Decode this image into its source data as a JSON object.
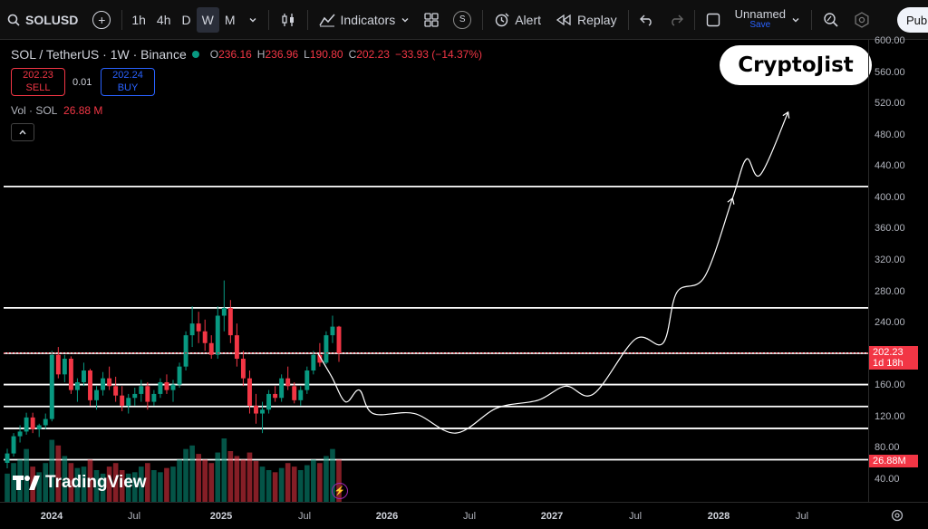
{
  "toolbar": {
    "symbol": "SOLUSD",
    "timeframes": [
      "1h",
      "4h",
      "D",
      "W",
      "M"
    ],
    "active_timeframe": "W",
    "indicators_label": "Indicators",
    "alert_label": "Alert",
    "replay_label": "Replay",
    "layout_name": "Unnamed",
    "save_label": "Save",
    "publish_label": "Pub",
    "s_badge": "S",
    "add_symbol": "+"
  },
  "legend": {
    "pair": "SOL / TetherUS · 1W · Binance",
    "open_label": "O",
    "open": "236.16",
    "high_label": "H",
    "high": "236.96",
    "low_label": "L",
    "low": "190.80",
    "close_label": "C",
    "close": "202.23",
    "change": "−33.93 (−14.37%)"
  },
  "trade": {
    "sell_price": "202.23",
    "sell_label": "SELL",
    "spread": "0.01",
    "buy_price": "202.24",
    "buy_label": "BUY"
  },
  "volume": {
    "label": "Vol · SOL",
    "value": "26.88 M"
  },
  "brand": "CryptoJist",
  "tv_logo": "TradingView",
  "price_axis": {
    "ticks": [
      "600.00",
      "560.00",
      "520.00",
      "480.00",
      "440.00",
      "400.00",
      "360.00",
      "320.00",
      "280.00",
      "240.00",
      "160.00",
      "120.00",
      "80.00",
      "40.00"
    ],
    "current_price": "202.23",
    "countdown": "1d 18h",
    "volume_tag": "26.88M"
  },
  "time_axis": {
    "ticks": [
      {
        "label": "2024",
        "bold": true
      },
      {
        "label": "Jul",
        "bold": false
      },
      {
        "label": "2025",
        "bold": true
      },
      {
        "label": "Jul",
        "bold": false
      },
      {
        "label": "2026",
        "bold": true
      },
      {
        "label": "Jul",
        "bold": false
      },
      {
        "label": "2027",
        "bold": true
      },
      {
        "label": "Jul",
        "bold": false
      },
      {
        "label": "2028",
        "bold": true
      },
      {
        "label": "Jul",
        "bold": false
      }
    ]
  },
  "colors": {
    "up": "#089981",
    "down": "#f23645",
    "accent": "#2962ff"
  },
  "chart_data": {
    "type": "candlestick",
    "horizontal_levels": [
      415,
      260,
      202,
      162,
      134,
      106,
      66
    ],
    "projection": [
      [
        "2025-08",
        202
      ],
      [
        "2025-09",
        172
      ],
      [
        "2025-10",
        140
      ],
      [
        "2025-11",
        155
      ],
      [
        "2025-12",
        125
      ],
      [
        "2026-03",
        125
      ],
      [
        "2026-06",
        100
      ],
      [
        "2026-09",
        132
      ],
      [
        "2026-12",
        142
      ],
      [
        "2027-02",
        160
      ],
      [
        "2027-04",
        150
      ],
      [
        "2027-07",
        220
      ],
      [
        "2027-09",
        215
      ],
      [
        "2027-10",
        280
      ],
      [
        "2027-12",
        300
      ],
      [
        "2028-02",
        400
      ],
      [
        "2028-03",
        450
      ],
      [
        "2028-04",
        430
      ],
      [
        "2028-06",
        510
      ]
    ],
    "candles": [
      [
        null,
        62,
        80,
        55,
        74
      ],
      [
        null,
        74,
        100,
        70,
        96
      ],
      [
        null,
        96,
        110,
        88,
        102
      ],
      [
        null,
        102,
        126,
        98,
        120
      ],
      [
        null,
        120,
        126,
        100,
        105
      ],
      [
        null,
        105,
        112,
        95,
        110
      ],
      [
        null,
        110,
        125,
        105,
        118
      ],
      [
        null,
        118,
        205,
        115,
        200
      ],
      [
        null,
        200,
        210,
        170,
        175
      ],
      [
        null,
        175,
        200,
        165,
        195
      ],
      [
        null,
        195,
        198,
        150,
        155
      ],
      [
        null,
        155,
        170,
        140,
        165
      ],
      [
        null,
        165,
        190,
        160,
        180
      ],
      [
        null,
        180,
        182,
        135,
        142
      ],
      [
        null,
        142,
        160,
        130,
        155
      ],
      [
        null,
        155,
        178,
        148,
        170
      ],
      [
        null,
        170,
        185,
        155,
        160
      ],
      [
        null,
        160,
        172,
        140,
        148
      ],
      [
        null,
        148,
        160,
        128,
        135
      ],
      [
        null,
        135,
        150,
        125,
        145
      ],
      [
        null,
        145,
        158,
        135,
        150
      ],
      [
        null,
        150,
        168,
        140,
        160
      ],
      [
        null,
        160,
        165,
        130,
        140
      ],
      [
        null,
        140,
        155,
        135,
        150
      ],
      [
        null,
        150,
        170,
        145,
        165
      ],
      [
        null,
        165,
        175,
        150,
        155
      ],
      [
        null,
        155,
        168,
        140,
        162
      ],
      [
        null,
        162,
        190,
        158,
        185
      ],
      [
        null,
        185,
        230,
        180,
        225
      ],
      [
        null,
        225,
        262,
        210,
        240
      ],
      [
        null,
        240,
        255,
        215,
        230
      ],
      [
        null,
        230,
        245,
        205,
        215
      ],
      [
        null,
        215,
        225,
        195,
        200
      ],
      [
        null,
        200,
        262,
        195,
        250
      ],
      [
        null,
        250,
        295,
        230,
        260
      ],
      [
        null,
        260,
        270,
        215,
        225
      ],
      [
        null,
        225,
        240,
        185,
        195
      ],
      [
        null,
        195,
        205,
        160,
        170
      ],
      [
        null,
        170,
        180,
        125,
        135
      ],
      [
        null,
        135,
        150,
        112,
        125
      ],
      [
        null,
        125,
        140,
        100,
        130
      ],
      [
        null,
        130,
        155,
        125,
        150
      ],
      [
        null,
        150,
        160,
        140,
        145
      ],
      [
        null,
        145,
        175,
        140,
        170
      ],
      [
        null,
        170,
        185,
        155,
        160
      ],
      [
        null,
        160,
        165,
        138,
        142
      ],
      [
        null,
        142,
        160,
        135,
        155
      ],
      [
        null,
        155,
        185,
        150,
        180
      ],
      [
        null,
        180,
        205,
        175,
        200
      ],
      [
        null,
        200,
        215,
        185,
        190
      ],
      [
        null,
        190,
        230,
        188,
        225
      ],
      [
        null,
        225,
        250,
        215,
        236
      ],
      [
        null,
        236,
        237,
        191,
        202
      ]
    ],
    "volumes": [
      40,
      55,
      60,
      75,
      50,
      42,
      55,
      88,
      80,
      65,
      55,
      48,
      50,
      60,
      45,
      40,
      50,
      55,
      45,
      40,
      42,
      50,
      55,
      45,
      42,
      48,
      50,
      60,
      75,
      80,
      68,
      60,
      55,
      70,
      90,
      72,
      65,
      60,
      70,
      58,
      50,
      45,
      42,
      48,
      55,
      50,
      45,
      52,
      60,
      55,
      65,
      75,
      60
    ]
  }
}
